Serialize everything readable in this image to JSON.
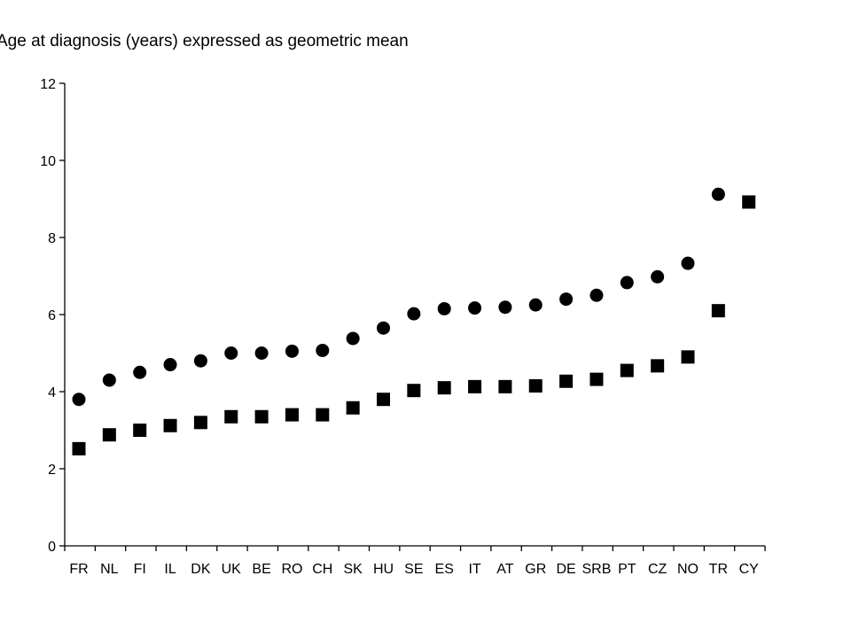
{
  "chart_data": {
    "type": "scatter",
    "title": "Age at diagnosis (years) expressed as geometric mean",
    "xlabel": "",
    "ylabel": "",
    "ylim": [
      0,
      12
    ],
    "yticks": [
      0,
      2,
      4,
      6,
      8,
      10,
      12
    ],
    "grid": false,
    "categories": [
      "FR",
      "NL",
      "FI",
      "IL",
      "DK",
      "UK",
      "BE",
      "RO",
      "CH",
      "SK",
      "HU",
      "SE",
      "ES",
      "IT",
      "AT",
      "GR",
      "DE",
      "SRB",
      "PT",
      "CZ",
      "NO",
      "TR",
      "CY"
    ],
    "series": [
      {
        "marker": "circle",
        "color": "#000000",
        "values": [
          3.8,
          4.3,
          4.5,
          4.7,
          4.8,
          5.0,
          5.0,
          5.05,
          5.07,
          5.38,
          5.65,
          6.02,
          6.15,
          6.17,
          6.19,
          6.25,
          6.4,
          6.5,
          6.83,
          6.98,
          7.33,
          9.12,
          null
        ]
      },
      {
        "marker": "square",
        "color": "#000000",
        "values": [
          2.52,
          2.88,
          3.0,
          3.12,
          3.2,
          3.35,
          3.35,
          3.4,
          3.4,
          3.58,
          3.8,
          4.03,
          4.1,
          4.13,
          4.13,
          4.15,
          4.27,
          4.32,
          4.55,
          4.67,
          4.9,
          6.1,
          8.92
        ]
      }
    ]
  }
}
